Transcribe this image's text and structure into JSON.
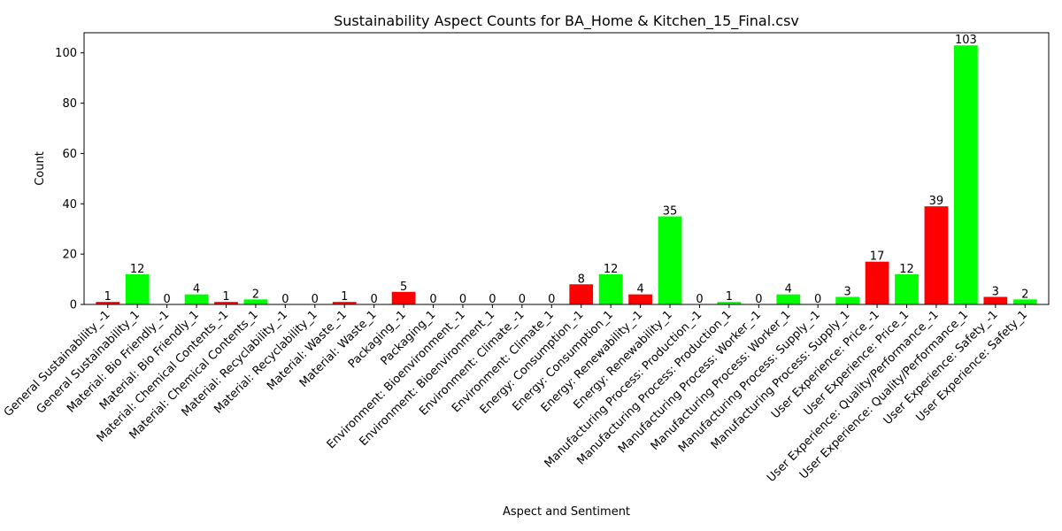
{
  "chart_data": {
    "type": "bar",
    "title": "Sustainability Aspect Counts for BA_Home & Kitchen_15_Final.csv",
    "xlabel": "Aspect and Sentiment",
    "ylabel": "Count",
    "ylim": [
      0,
      108
    ],
    "yticks": [
      0,
      20,
      40,
      60,
      80,
      100
    ],
    "grid": false,
    "colors": {
      "negative": "#ff0000",
      "positive": "#00ff00"
    },
    "categories": [
      "General Sustainability_-1",
      "General Sustainability_1",
      "Material: Bio Friendly_-1",
      "Material: Bio Friendly_1",
      "Material: Chemical Contents_-1",
      "Material: Chemical Contents_1",
      "Material: Recyclability_-1",
      "Material: Recyclability_1",
      "Material: Waste_-1",
      "Material: Waste_1",
      "Packaging_-1",
      "Packaging_1",
      "Environment: Bioenvironment_-1",
      "Environment: Bioenvironment_1",
      "Environment: Climate_-1",
      "Environment: Climate_1",
      "Energy: Consumption_-1",
      "Energy: Consumption_1",
      "Energy: Renewability_-1",
      "Energy: Renewability_1",
      "Manufacturing Process: Production_-1",
      "Manufacturing Process: Production_1",
      "Manufacturing Process: Worker_-1",
      "Manufacturing Process: Worker_1",
      "Manufacturing Process: Supply_-1",
      "Manufacturing Process: Supply_1",
      "User Experience: Price_-1",
      "User Experience: Price_1",
      "User Experience: Quality/Performance_-1",
      "User Experience: Quality/Performance_1",
      "User Experience: Safety_-1",
      "User Experience: Safety_1"
    ],
    "values": [
      1,
      12,
      0,
      4,
      1,
      2,
      0,
      0,
      1,
      0,
      5,
      0,
      0,
      0,
      0,
      0,
      8,
      12,
      4,
      35,
      0,
      1,
      0,
      4,
      0,
      3,
      17,
      12,
      39,
      103,
      3,
      2
    ]
  }
}
